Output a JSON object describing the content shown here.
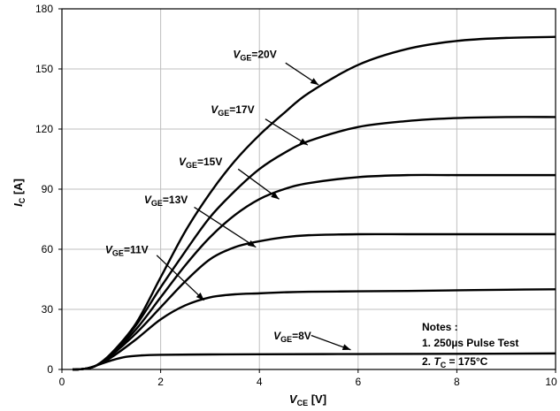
{
  "chart_data": {
    "type": "line",
    "xlabel": {
      "main": "V",
      "sub": "CE",
      "unit": " [V]"
    },
    "ylabel": {
      "main": "I",
      "sub": "C",
      "unit": " [A]"
    },
    "xlim": [
      0,
      10
    ],
    "ylim": [
      0,
      180
    ],
    "xticks": [
      0,
      2,
      4,
      6,
      8,
      10
    ],
    "yticks": [
      0,
      30,
      60,
      90,
      120,
      150,
      180
    ],
    "grid": true,
    "series": [
      {
        "name": "VGE=20V",
        "label_main": "V",
        "label_sub": "GE",
        "label_rest": "=20V",
        "x": [
          0.3,
          0.5,
          0.7,
          1.0,
          1.5,
          2.0,
          2.5,
          3.0,
          3.5,
          4.0,
          4.5,
          5.0,
          6.0,
          7.0,
          8.0,
          9.0,
          10.0
        ],
        "y": [
          0,
          0.5,
          2,
          8,
          23,
          46,
          69,
          88,
          104,
          117,
          128,
          138,
          152,
          160,
          164,
          165.5,
          166
        ]
      },
      {
        "name": "VGE=17V",
        "label_main": "V",
        "label_sub": "GE",
        "label_rest": "=17V",
        "x": [
          0.3,
          0.5,
          0.7,
          1.0,
          1.5,
          2.0,
          2.5,
          3.0,
          3.5,
          4.0,
          4.5,
          5.0,
          6.0,
          7.0,
          8.0,
          9.0,
          10.0
        ],
        "y": [
          0,
          0.5,
          2,
          8,
          22,
          41,
          59,
          76,
          89,
          100,
          108,
          114,
          121,
          124,
          125.5,
          126,
          126
        ]
      },
      {
        "name": "VGE=15V",
        "label_main": "V",
        "label_sub": "GE",
        "label_rest": "=15V",
        "x": [
          0.3,
          0.5,
          0.7,
          1.0,
          1.5,
          2.0,
          2.5,
          3.0,
          3.5,
          4.0,
          4.5,
          5.0,
          6.0,
          7.0,
          8.0,
          9.0,
          10.0
        ],
        "y": [
          0,
          0.5,
          2,
          7.5,
          20,
          36,
          52,
          66,
          77,
          85,
          90,
          93,
          96,
          97,
          97,
          97,
          97
        ]
      },
      {
        "name": "VGE=13V",
        "label_main": "V",
        "label_sub": "GE",
        "label_rest": "=13V",
        "x": [
          0.3,
          0.5,
          0.7,
          1.0,
          1.5,
          2.0,
          2.5,
          3.0,
          3.5,
          4.0,
          4.5,
          5.0,
          6.0,
          7.0,
          8.0,
          9.0,
          10.0
        ],
        "y": [
          0,
          0.5,
          2,
          7,
          18,
          31,
          44,
          55,
          61,
          64,
          66,
          67,
          67.5,
          67.5,
          67.5,
          67.5,
          67.5
        ]
      },
      {
        "name": "VGE=11V",
        "label_main": "V",
        "label_sub": "GE",
        "label_rest": "=11V",
        "x": [
          0.3,
          0.5,
          0.7,
          1.0,
          1.5,
          2.0,
          2.5,
          3.0,
          3.5,
          4.0,
          4.5,
          5.0,
          6.0,
          7.0,
          8.0,
          9.0,
          10.0
        ],
        "y": [
          0,
          0.5,
          2,
          6,
          15,
          25,
          32,
          36,
          37.5,
          38,
          38.5,
          38.8,
          39,
          39.2,
          39.5,
          39.8,
          40
        ]
      },
      {
        "name": "VGE=8V",
        "label_main": "V",
        "label_sub": "GE",
        "label_rest": "=8V",
        "x": [
          0.3,
          0.5,
          0.7,
          1.0,
          1.3,
          1.6,
          2.0,
          3.0,
          4.0,
          6.0,
          8.0,
          10.0
        ],
        "y": [
          0,
          0.5,
          2,
          4.5,
          6.3,
          7,
          7.3,
          7.5,
          7.6,
          7.7,
          7.8,
          8
        ]
      }
    ],
    "annotations": [
      {
        "series": 0,
        "text_at": [
          4.35,
          155.5
        ],
        "arrow_from": [
          4.53,
          153
        ],
        "arrow_to": [
          5.2,
          142
        ]
      },
      {
        "series": 1,
        "text_at": [
          3.9,
          128
        ],
        "arrow_from": [
          4.12,
          125
        ],
        "arrow_to": [
          4.98,
          112
        ]
      },
      {
        "series": 2,
        "text_at": [
          3.25,
          102
        ],
        "arrow_from": [
          3.57,
          100
        ],
        "arrow_to": [
          4.4,
          85
        ]
      },
      {
        "series": 3,
        "text_at": [
          2.55,
          83
        ],
        "arrow_from": [
          2.68,
          81
        ],
        "arrow_to": [
          3.93,
          61
        ]
      },
      {
        "series": 4,
        "text_at": [
          1.75,
          58
        ],
        "arrow_from": [
          1.92,
          57
        ],
        "arrow_to": [
          2.88,
          34.5
        ]
      },
      {
        "series": 5,
        "text_at": [
          5.05,
          15
        ],
        "arrow_from": [
          5.05,
          17
        ],
        "arrow_to": [
          5.85,
          9.8
        ]
      }
    ],
    "notes": {
      "title": "Notes :",
      "line1": "1. 250µs Pulse Test",
      "line2_prefix": "2. ",
      "line2_var": "T",
      "line2_sub": "C",
      "line2_rest": " = 175°C"
    }
  }
}
